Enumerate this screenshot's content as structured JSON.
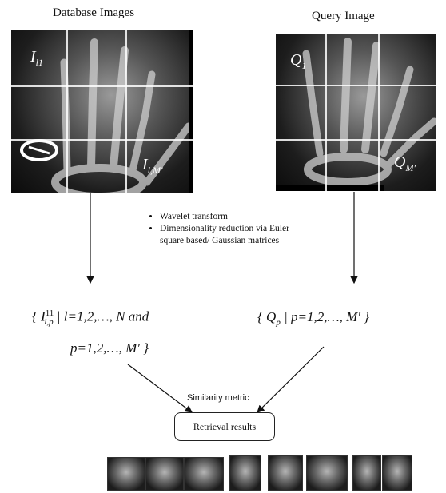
{
  "titles": {
    "database": "Database Images",
    "query": "Query Image"
  },
  "tile_labels": {
    "db_first_main": "I",
    "db_first_sub": "l1",
    "db_last_main": "I",
    "db_last_sub": "l,M′",
    "q_first_main": "Q",
    "q_first_sub": "1",
    "q_last_main": "Q",
    "q_last_sub": "M′"
  },
  "process_steps": [
    "Wavelet transform",
    "Dimensionality reduction via Euler square based/ Gaussian matrices"
  ],
  "left_set": {
    "line1": "{ I",
    "sup": "11",
    "sub": "l,p",
    "mid": " | l=1,2,…, N and",
    "line2": "p=1,2,…, M′ }"
  },
  "right_set": {
    "text": "{ Q",
    "sub": "p",
    "rest": " | p=1,2,…, M′ }"
  },
  "similarity_label": "Similarity metric",
  "results_label": "Retrieval results",
  "colors": {
    "grid": "#ffffff",
    "arrow": "#111111",
    "bone": "#cfcfcf"
  }
}
